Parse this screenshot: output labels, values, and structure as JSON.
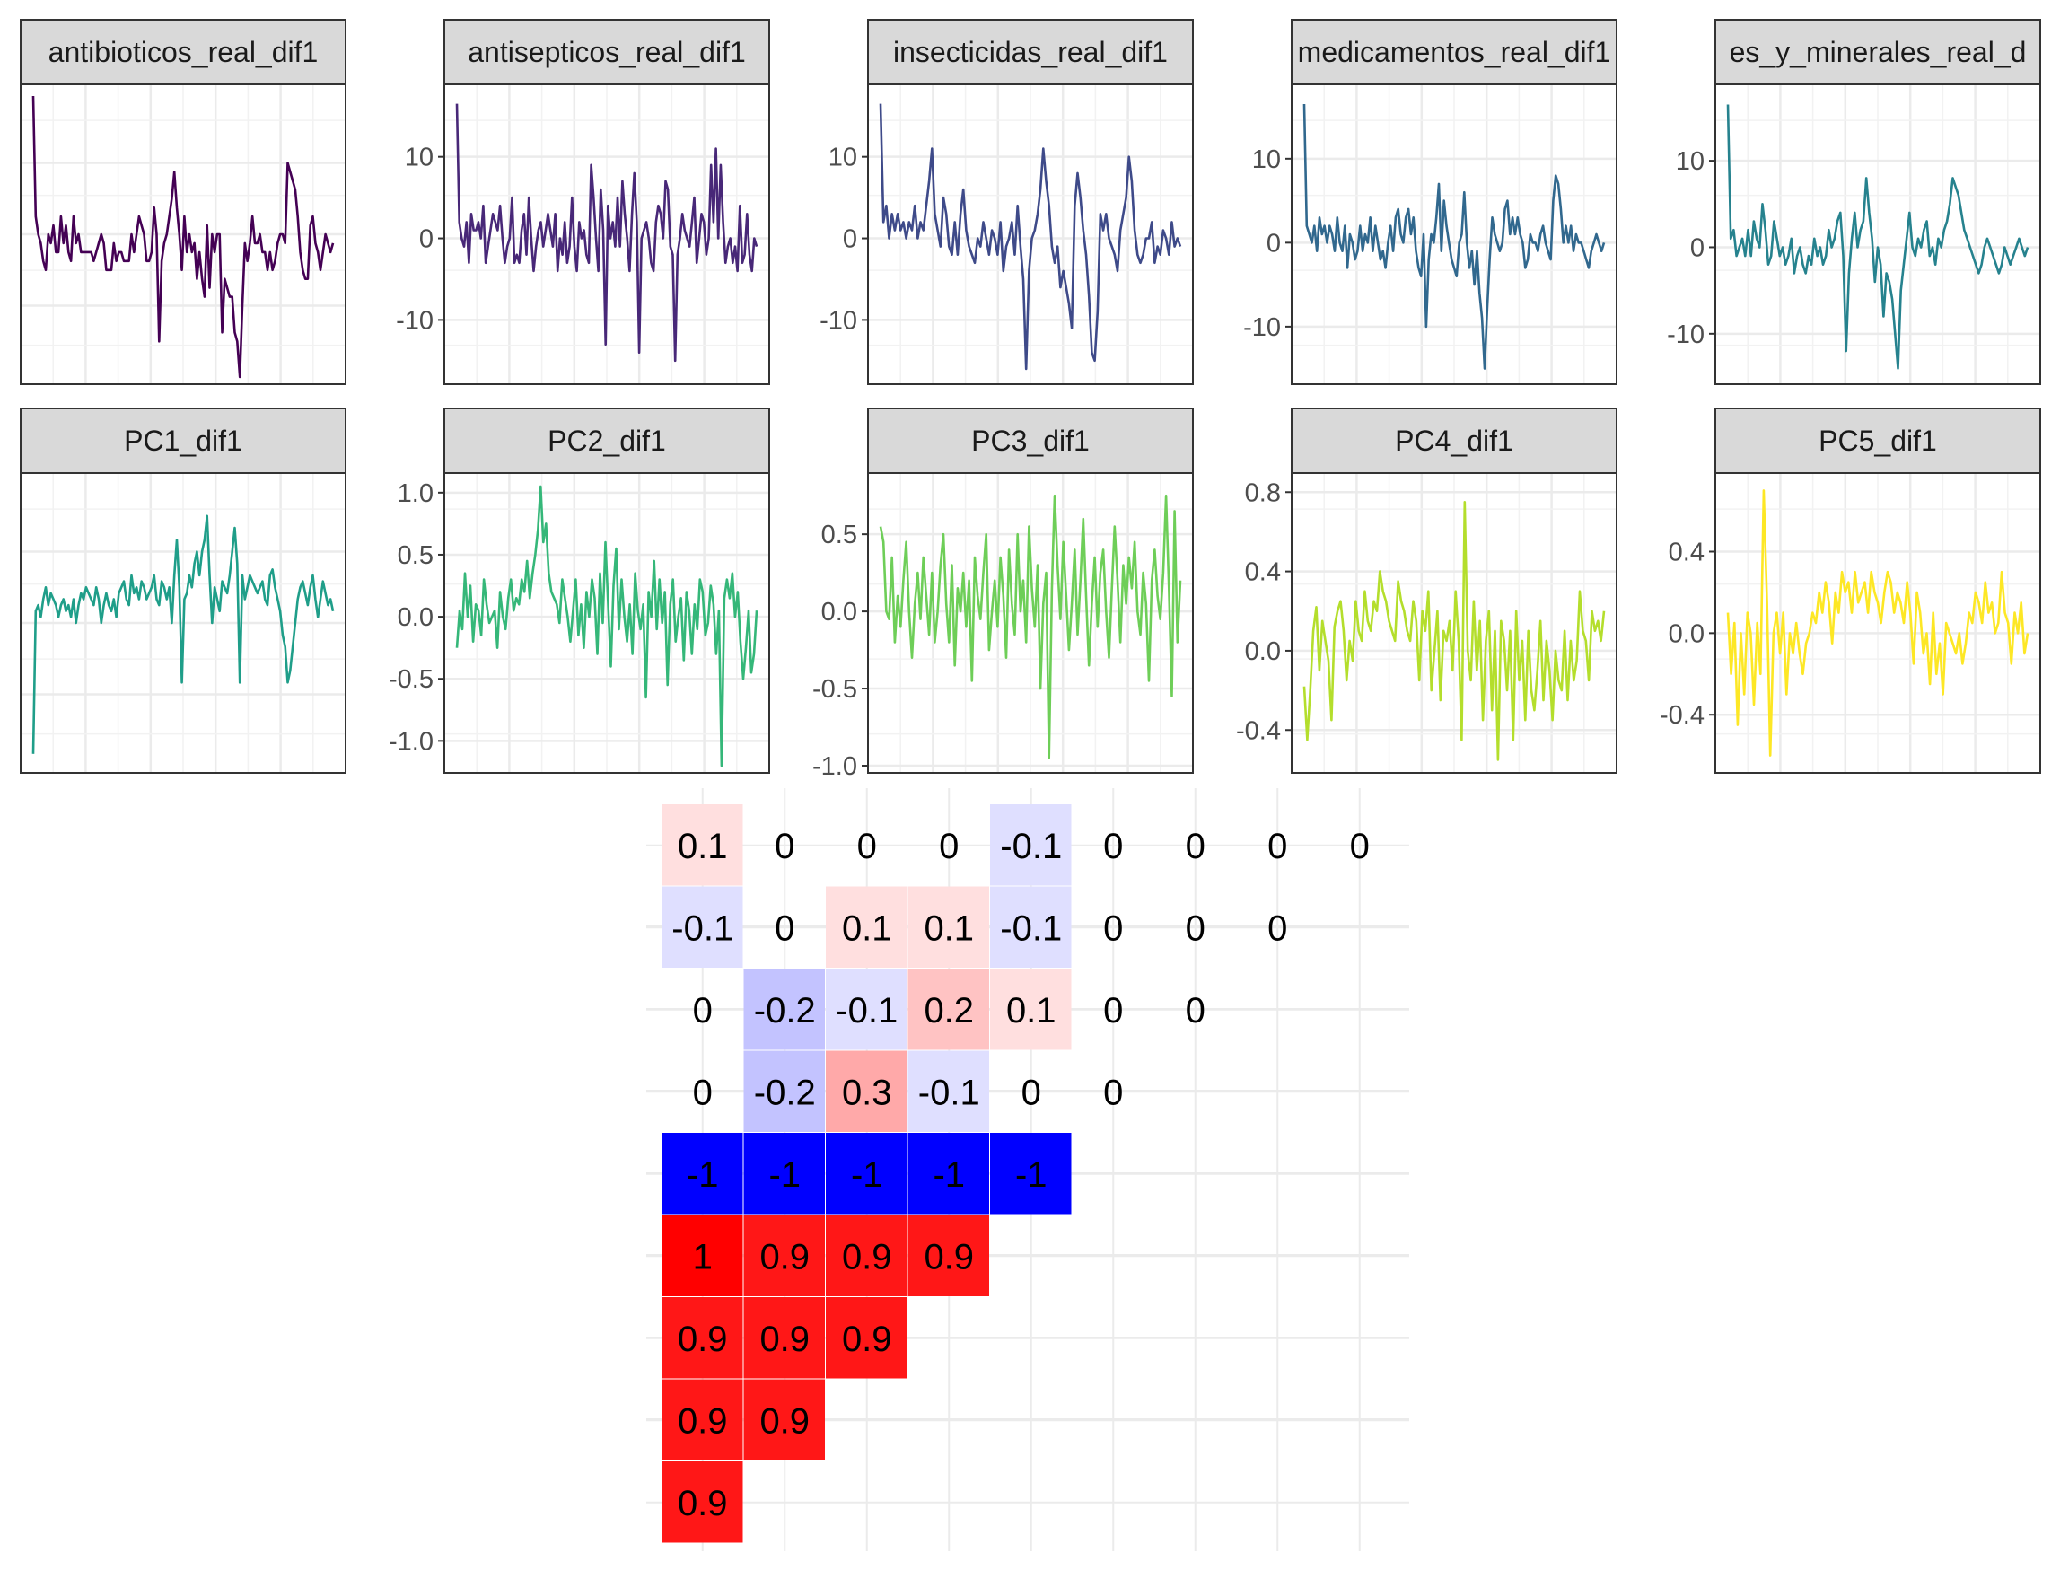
{
  "chart_data": [
    {
      "type": "line",
      "title": "antibioticos_real_dif1",
      "color": "#440154",
      "ylim": [
        -15,
        17
      ],
      "yticks": [],
      "values": [
        16.5,
        3,
        1,
        0,
        -2,
        -3,
        1,
        0,
        2,
        -1,
        -1,
        3,
        0,
        2,
        -1,
        -2,
        3,
        0,
        1,
        -1,
        -1,
        -1,
        -1,
        -1,
        -2,
        -1,
        0,
        1,
        0,
        -3,
        -3,
        -3,
        0,
        -2,
        -1,
        -1,
        -2,
        -2,
        -2,
        1,
        -1,
        1,
        3,
        2,
        1,
        -2,
        -2,
        -1,
        4,
        1,
        -11,
        -2,
        0,
        1,
        3,
        5,
        8,
        4,
        1,
        -3,
        3,
        -1,
        1,
        -1,
        0,
        -4,
        -1,
        -4,
        -6,
        2,
        -5,
        1,
        -1,
        1,
        1,
        -10,
        -4,
        -5,
        -6,
        -6,
        -10,
        -11,
        -15,
        -7,
        0,
        -2,
        0,
        3,
        0,
        0,
        1,
        -1,
        -1,
        -3,
        -1,
        -3,
        -2,
        0,
        1,
        1,
        0,
        9,
        8,
        7,
        6,
        3,
        -1,
        -3,
        -4,
        -4,
        2,
        3,
        0,
        -1,
        -3,
        -1,
        1,
        0,
        -1,
        0
      ]
    },
    {
      "type": "line",
      "title": "antisepticos_real_dif1",
      "color": "#482878",
      "ylim": [
        -17,
        18
      ],
      "yticks": [
        10,
        0,
        -10
      ],
      "values": [
        16.5,
        2,
        0,
        -1,
        2,
        -3,
        3,
        1,
        1,
        2,
        0,
        4,
        -3,
        -1,
        1,
        3,
        2,
        1,
        4,
        0,
        -3,
        -1,
        0,
        5,
        -3,
        -2,
        -3,
        1,
        3,
        -2,
        5,
        0,
        -4,
        -1,
        1,
        2,
        -1,
        1,
        3,
        1,
        -1,
        3,
        -4,
        0,
        -2,
        2,
        -3,
        -1,
        5,
        -1,
        -4,
        2,
        0,
        1,
        -2,
        -3,
        9,
        5,
        0,
        -4,
        6,
        1,
        -13,
        4,
        0,
        2,
        -1,
        5,
        -1,
        7,
        3,
        0,
        -4,
        3,
        8,
        2,
        -14,
        0,
        1,
        2,
        0,
        -3,
        -4,
        2,
        4,
        3,
        0,
        7,
        6,
        -1,
        -2,
        -15,
        -2,
        0,
        3,
        1,
        0,
        -1,
        2,
        5,
        -3,
        0,
        3,
        2,
        -2,
        0,
        9,
        2,
        11,
        0,
        9,
        2,
        -3,
        -1,
        0,
        -3,
        -1,
        -4,
        4,
        -3,
        -2,
        3,
        -2,
        -4,
        0,
        -1
      ]
    },
    {
      "type": "line",
      "title": "insecticidas_real_dif1",
      "color": "#3e4a89",
      "ylim": [
        -17,
        18
      ],
      "yticks": [
        10,
        0,
        -10
      ],
      "values": [
        16.5,
        2,
        4,
        0,
        3,
        1,
        3,
        1,
        2,
        0,
        2,
        1,
        4,
        0,
        2,
        1,
        4,
        7,
        11,
        3,
        1,
        -1,
        5,
        3,
        -1,
        -2,
        2,
        -2,
        3,
        6,
        1,
        -1,
        -2,
        -3,
        0,
        -1,
        2,
        0,
        -2,
        1,
        0,
        -2,
        2,
        -4,
        -1,
        0,
        2,
        -2,
        4,
        -1,
        -5,
        -16,
        -4,
        0,
        1,
        3,
        6,
        11,
        7,
        4,
        -1,
        -3,
        -1,
        -6,
        -4,
        -6,
        -8,
        -11,
        4,
        8,
        5,
        1,
        -2,
        -7,
        -14,
        -15,
        -9,
        3,
        1,
        3,
        0,
        -1,
        -2,
        -4,
        1,
        3,
        5,
        10,
        7,
        1,
        -2,
        -3,
        -2,
        0,
        0,
        2,
        -3,
        -1,
        -2,
        1,
        0,
        -2,
        2,
        -1,
        0,
        -1
      ]
    },
    {
      "type": "line",
      "title": "medicamentos_real_dif1",
      "color": "#31688e",
      "ylim": [
        -16,
        18
      ],
      "yticks": [
        10,
        0,
        -10
      ],
      "values": [
        16.5,
        2,
        1,
        0,
        2,
        -1,
        3,
        1,
        2,
        0,
        2,
        1,
        -1,
        3,
        0,
        -1,
        2,
        -3,
        1,
        0,
        -2,
        -1,
        2,
        -1,
        1,
        0,
        3,
        -1,
        2,
        0,
        -2,
        -1,
        -3,
        0,
        2,
        -1,
        3,
        4,
        1,
        0,
        3,
        4,
        1,
        3,
        -1,
        -3,
        -4,
        1,
        -10,
        -2,
        1,
        0,
        3,
        7,
        -1,
        5,
        2,
        0,
        -2,
        -3,
        -4,
        0,
        1,
        6,
        0,
        -3,
        -1,
        -5,
        -1,
        -6,
        -9,
        -15,
        -8,
        -2,
        3,
        1,
        0,
        -1,
        0,
        4,
        5,
        1,
        3,
        1,
        3,
        1,
        0,
        -3,
        -2,
        1,
        0,
        0,
        -1,
        1,
        2,
        0,
        -1,
        -2,
        5,
        8,
        7,
        4,
        0,
        2,
        0,
        2,
        -1,
        1,
        0,
        0,
        -1,
        -2,
        -3,
        -1,
        0,
        1,
        0,
        -1,
        0
      ]
    },
    {
      "type": "line",
      "title": "es_y_minerales_real_d",
      "color": "#26828e",
      "ylim": [
        -15,
        18
      ],
      "yticks": [
        10,
        0,
        -10
      ],
      "values": [
        16.5,
        1,
        2,
        -1,
        0,
        1,
        -1,
        2,
        -1,
        3,
        1,
        0,
        5,
        2,
        -2,
        -1,
        3,
        1,
        -1,
        0,
        -2,
        -1,
        1,
        -3,
        -1,
        0,
        -2,
        -3,
        -1,
        -2,
        1,
        -1,
        0,
        -2,
        -1,
        2,
        0,
        1,
        3,
        4,
        -1,
        -12,
        -3,
        1,
        4,
        0,
        2,
        3,
        8,
        4,
        1,
        -4,
        0,
        -2,
        -8,
        -3,
        -4,
        -6,
        -10,
        -14,
        -5,
        -2,
        1,
        4,
        0,
        -1,
        1,
        0,
        2,
        3,
        -1,
        0,
        -2,
        1,
        0,
        2,
        3,
        5,
        8,
        7,
        6,
        4,
        2,
        1,
        0,
        -1,
        -2,
        -3,
        -2,
        0,
        1,
        0,
        -1,
        -2,
        -3,
        -2,
        0,
        -1,
        -2,
        -1,
        0,
        1,
        0,
        -1,
        0
      ]
    },
    {
      "type": "line",
      "title": "PC1_dif1",
      "color": "#1f9e89",
      "ylim": [
        -1.3,
        1.1
      ],
      "yticks": [],
      "values": [
        -1.2,
        0,
        0.05,
        -0.05,
        0.1,
        0.2,
        0.05,
        0.15,
        0.1,
        0.05,
        -0.05,
        0.05,
        0.1,
        0.0,
        0.05,
        -0.05,
        0.1,
        -0.1,
        0.05,
        0.15,
        0.1,
        0.2,
        0.15,
        0.1,
        0.05,
        0.2,
        0.1,
        -0.1,
        0.05,
        0.15,
        0.05,
        0.0,
        0.1,
        -0.05,
        0.15,
        0.2,
        0.25,
        0.1,
        0.05,
        0.3,
        0.15,
        0.2,
        0.1,
        0.25,
        0.2,
        0.1,
        0.15,
        0.2,
        0.3,
        0.1,
        0.05,
        0.25,
        0.2,
        0.1,
        0.2,
        -0.1,
        0.3,
        0.6,
        0.2,
        -0.6,
        0.1,
        0.15,
        0.3,
        0.2,
        0.4,
        0.5,
        0.3,
        0.5,
        0.6,
        0.8,
        0.3,
        -0.1,
        0.2,
        0.1,
        0.0,
        0.25,
        0.2,
        0.15,
        0.3,
        0.5,
        0.7,
        0.4,
        -0.6,
        0.3,
        0.1,
        0.2,
        0.3,
        0.25,
        0.2,
        0.15,
        0.2,
        0.25,
        0.1,
        0.05,
        0.3,
        0.35,
        0.2,
        0.1,
        0.0,
        -0.2,
        -0.3,
        -0.6,
        -0.5,
        -0.3,
        -0.1,
        0.1,
        0.2,
        0.25,
        0.15,
        0.05,
        0.2,
        0.3,
        0.1,
        -0.05,
        0.1,
        0.25,
        0.15,
        0.05,
        0.1,
        0.0
      ]
    },
    {
      "type": "line",
      "title": "PC2_dif1",
      "color": "#35b779",
      "ylim": [
        -1.2,
        1.1
      ],
      "yticks": [
        1.0,
        0.5,
        0.0,
        -0.5,
        -1.0
      ],
      "ytick_labels": [
        "1.0",
        "0.5",
        "0.0",
        "-0.5",
        "-1.0"
      ],
      "values": [
        -0.25,
        0.05,
        -0.1,
        0.35,
        0.0,
        0.25,
        -0.2,
        0.1,
        0.05,
        -0.15,
        0.3,
        0.1,
        -0.05,
        0.0,
        0.05,
        -0.25,
        0.2,
        0.0,
        -0.1,
        0.15,
        0.3,
        0.05,
        0.15,
        0.1,
        0.3,
        0.2,
        0.45,
        0.15,
        0.35,
        0.5,
        0.7,
        1.05,
        0.6,
        0.75,
        0.35,
        0.2,
        0.15,
        0.1,
        -0.05,
        0.3,
        0.15,
        0.0,
        -0.2,
        0.05,
        0.3,
        -0.15,
        0.1,
        -0.25,
        0.2,
        0.0,
        0.3,
        0.15,
        -0.3,
        0.35,
        -0.05,
        0.6,
        0.1,
        -0.4,
        0.25,
        0.55,
        -0.1,
        0.3,
        0.0,
        -0.2,
        0.1,
        -0.3,
        0.35,
        0.05,
        -0.1,
        0.1,
        -0.65,
        0.2,
        0.0,
        0.45,
        -0.1,
        0.3,
        -0.05,
        0.2,
        -0.55,
        0.1,
        0.3,
        -0.2,
        0.0,
        0.15,
        -0.35,
        0.2,
        0.05,
        -0.3,
        0.1,
        -0.1,
        0.3,
        0.2,
        -0.15,
        -0.05,
        0.25,
        0.1,
        -0.3,
        0.05,
        -1.2,
        0.15,
        0.3,
        0.15,
        0.35,
        0.0,
        0.2,
        -0.2,
        -0.5,
        -0.25,
        0.05,
        -0.45,
        -0.3,
        0.05
      ]
    },
    {
      "type": "line",
      "title": "PC3_dif1",
      "color": "#6ece58",
      "ylim": [
        -1.0,
        0.85
      ],
      "yticks": [
        0.5,
        0.0,
        -0.5,
        -1.0
      ],
      "ytick_labels": [
        "0.5",
        "0.0",
        "-0.5",
        "-1.0"
      ],
      "values": [
        0.55,
        0.45,
        0.0,
        -0.05,
        0.35,
        -0.2,
        0.1,
        -0.1,
        0.2,
        0.45,
        0.0,
        -0.3,
        0.05,
        0.25,
        -0.05,
        0.35,
        0.1,
        -0.15,
        0.25,
        -0.2,
        0.0,
        0.3,
        0.5,
        0.05,
        -0.2,
        0.3,
        -0.35,
        0.15,
        0.0,
        0.25,
        -0.1,
        0.2,
        -0.45,
        0.35,
        0.1,
        -0.05,
        0.25,
        0.5,
        -0.25,
        0.0,
        0.2,
        -0.1,
        0.35,
        0.1,
        -0.3,
        0.4,
        0.05,
        -0.15,
        0.5,
        0.0,
        0.2,
        -0.2,
        0.55,
        0.15,
        -0.1,
        0.3,
        -0.5,
        0.05,
        0.25,
        -0.95,
        0.15,
        0.75,
        0.3,
        -0.05,
        0.45,
        0.1,
        -0.25,
        0.05,
        0.4,
        -0.15,
        0.2,
        0.6,
        0.1,
        -0.35,
        0.05,
        0.35,
        -0.1,
        0.25,
        0.4,
        0.0,
        -0.3,
        0.15,
        0.55,
        0.2,
        -0.2,
        0.3,
        0.05,
        0.35,
        0.15,
        0.45,
        0.0,
        -0.15,
        0.25,
        0.05,
        -0.45,
        0.2,
        0.4,
        0.1,
        -0.05,
        0.25,
        0.75,
        0.15,
        -0.55,
        0.65,
        -0.2,
        0.2
      ]
    },
    {
      "type": "line",
      "title": "PC4_dif1",
      "color": "#b4de2c",
      "ylim": [
        -0.58,
        0.86
      ],
      "yticks": [
        0.8,
        0.4,
        0.0,
        -0.4
      ],
      "ytick_labels": [
        "0.8",
        "0.4",
        "0.0",
        "-0.4"
      ],
      "values": [
        -0.18,
        -0.45,
        -0.2,
        0.1,
        0.22,
        -0.1,
        0.15,
        0.05,
        -0.05,
        -0.35,
        0.12,
        0.2,
        0.25,
        0.1,
        -0.15,
        0.05,
        -0.05,
        0.25,
        0.1,
        0.05,
        0.3,
        0.15,
        0.1,
        0.25,
        0.2,
        0.4,
        0.3,
        0.25,
        0.15,
        0.1,
        0.05,
        0.35,
        0.25,
        0.2,
        0.1,
        0.05,
        0.25,
        0.15,
        -0.15,
        0.2,
        0.1,
        0.3,
        -0.2,
        0.0,
        0.2,
        -0.25,
        0.1,
        0.05,
        0.15,
        -0.1,
        0.3,
        0.05,
        -0.45,
        0.75,
        0.0,
        -0.15,
        0.25,
        -0.1,
        0.15,
        -0.35,
        0.05,
        0.2,
        -0.3,
        0.1,
        -0.55,
        0.15,
        0.05,
        -0.2,
        0.1,
        -0.45,
        0.2,
        -0.15,
        0.05,
        -0.35,
        0.1,
        -0.2,
        -0.3,
        -0.1,
        0.15,
        -0.25,
        0.05,
        -0.1,
        -0.35,
        0.0,
        -0.15,
        -0.2,
        0.1,
        -0.25,
        0.05,
        -0.15,
        -0.05,
        0.3,
        0.1,
        0.05,
        -0.15,
        0.2,
        0.1,
        0.15,
        0.05,
        0.2
      ]
    },
    {
      "type": "line",
      "title": "PC5_dif1",
      "color": "#fde725",
      "ylim": [
        -0.65,
        0.75
      ],
      "yticks": [
        0.4,
        0.0,
        -0.4
      ],
      "ytick_labels": [
        "0.4",
        "0.0",
        "-0.4"
      ],
      "values": [
        0.1,
        -0.2,
        0.05,
        -0.45,
        0.0,
        -0.3,
        0.1,
        0.0,
        -0.35,
        0.05,
        -0.2,
        0.7,
        0.15,
        -0.6,
        0.0,
        0.1,
        -0.1,
        0.1,
        -0.3,
        0.0,
        -0.1,
        0.05,
        -0.1,
        -0.2,
        -0.05,
        0.0,
        0.1,
        0.05,
        0.2,
        0.1,
        0.25,
        0.15,
        -0.05,
        0.2,
        0.1,
        0.3,
        0.2,
        0.25,
        0.1,
        0.3,
        0.15,
        0.2,
        0.25,
        0.1,
        0.3,
        0.2,
        0.15,
        0.05,
        0.2,
        0.3,
        0.25,
        0.1,
        0.2,
        0.15,
        0.05,
        0.25,
        0.1,
        -0.15,
        0.2,
        0.1,
        -0.1,
        0.0,
        -0.25,
        0.1,
        -0.2,
        -0.05,
        -0.3,
        0.05,
        0.0,
        -0.05,
        -0.1,
        0.0,
        -0.15,
        -0.05,
        0.1,
        0.05,
        0.2,
        0.15,
        0.05,
        0.25,
        0.1,
        0.15,
        0.0,
        0.05,
        0.3,
        0.1,
        0.05,
        -0.15,
        0.1,
        0.0,
        0.15,
        -0.1,
        0.0
      ]
    },
    {
      "type": "heatmap",
      "rows": [
        [
          0.1,
          0,
          0,
          0,
          -0.1,
          0,
          0,
          0,
          0
        ],
        [
          -0.1,
          0,
          0.1,
          0.1,
          -0.1,
          0,
          0,
          0
        ],
        [
          0,
          -0.2,
          -0.1,
          0.2,
          0.1,
          0,
          0
        ],
        [
          0,
          -0.2,
          0.3,
          -0.1,
          0,
          0
        ],
        [
          -1,
          -1,
          -1,
          -1,
          -1
        ],
        [
          1,
          0.9,
          0.9,
          0.9
        ],
        [
          0.9,
          0.9,
          0.9
        ],
        [
          0.9,
          0.9
        ],
        [
          0.9
        ]
      ],
      "labels": [
        [
          "0.1",
          "0",
          "0",
          "0",
          "-0.1",
          "0",
          "0",
          "0",
          "0"
        ],
        [
          "-0.1",
          "0",
          "0.1",
          "0.1",
          "-0.1",
          "0",
          "0",
          "0"
        ],
        [
          "0",
          "-0.2",
          "-0.1",
          "0.2",
          "0.1",
          "0",
          "0"
        ],
        [
          "0",
          "-0.2",
          "0.3",
          "-0.1",
          "0",
          "0"
        ],
        [
          "-1",
          "-1",
          "-1",
          "-1",
          "-1"
        ],
        [
          "1",
          "0.9",
          "0.9",
          "0.9"
        ],
        [
          "0.9",
          "0.9",
          "0.9"
        ],
        [
          "0.9",
          "0.9"
        ],
        [
          "0.9"
        ]
      ],
      "colors": {
        "low": "#0000ff",
        "mid": "#ffffff",
        "high": "#ff0000"
      }
    }
  ]
}
